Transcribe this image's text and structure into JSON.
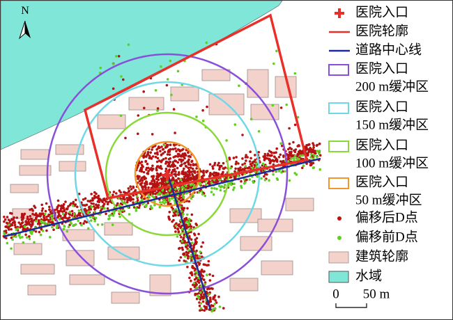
{
  "north_arrow": {
    "label": "N"
  },
  "legend": {
    "items": [
      {
        "lines": [
          "医院入口"
        ]
      },
      {
        "lines": [
          "医院轮廓"
        ]
      },
      {
        "lines": [
          "道路中心线"
        ]
      },
      {
        "lines": [
          "医院入口",
          "200 m缓冲区"
        ]
      },
      {
        "lines": [
          "医院入口",
          "150 m缓冲区"
        ]
      },
      {
        "lines": [
          "医院入口",
          "100 m缓冲区"
        ]
      },
      {
        "lines": [
          "医院入口",
          "50 m缓冲区"
        ]
      },
      {
        "lines": [
          "偏移后D点"
        ]
      },
      {
        "lines": [
          "偏移前D点"
        ]
      },
      {
        "lines": [
          "建筑轮廓"
        ]
      },
      {
        "lines": [
          "水域"
        ]
      }
    ]
  },
  "scale_bar": {
    "start": "0",
    "end": "50 m"
  }
}
